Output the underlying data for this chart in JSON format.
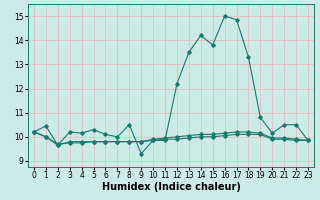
{
  "line1": {
    "x": [
      0,
      1,
      2,
      3,
      4,
      5,
      6,
      7,
      8,
      9,
      10,
      11,
      12,
      13,
      14,
      15,
      16,
      17,
      18,
      19,
      20,
      21,
      22,
      23
    ],
    "y": [
      10.2,
      10.45,
      9.65,
      10.2,
      10.15,
      10.3,
      10.1,
      10.0,
      10.5,
      9.3,
      9.85,
      9.85,
      12.2,
      13.5,
      14.2,
      13.8,
      15.0,
      14.85,
      13.3,
      10.8,
      10.15,
      10.5,
      10.5,
      9.85
    ]
  },
  "line2": {
    "x": [
      0,
      1,
      2,
      3,
      4,
      5,
      6,
      7,
      8,
      9,
      10,
      11,
      12,
      13,
      14,
      15,
      16,
      17,
      18,
      19,
      20,
      21,
      22,
      23
    ],
    "y": [
      10.2,
      10.0,
      9.65,
      9.8,
      9.8,
      9.8,
      9.8,
      9.8,
      9.8,
      9.8,
      9.85,
      9.9,
      9.9,
      9.95,
      10.0,
      10.0,
      10.05,
      10.1,
      10.1,
      10.1,
      9.9,
      9.9,
      9.85,
      9.85
    ]
  },
  "line3": {
    "x": [
      0,
      1,
      2,
      3,
      4,
      5,
      6,
      7,
      8,
      9,
      10,
      11,
      12,
      13,
      14,
      15,
      16,
      17,
      18,
      19,
      20,
      21,
      22,
      23
    ],
    "y": [
      10.2,
      10.0,
      9.7,
      9.75,
      9.75,
      9.8,
      9.8,
      9.8,
      9.8,
      9.8,
      9.9,
      9.95,
      10.0,
      10.05,
      10.1,
      10.1,
      10.15,
      10.2,
      10.2,
      10.15,
      9.95,
      9.95,
      9.9,
      9.85
    ]
  },
  "line_color": "#1a7a6e",
  "bg_color": "#cceae6",
  "grid_color": "#e8b8b8",
  "xlabel": "Humidex (Indice chaleur)",
  "ylim": [
    8.75,
    15.5
  ],
  "xlim": [
    -0.5,
    23.5
  ],
  "yticks": [
    9,
    10,
    11,
    12,
    13,
    14,
    15
  ],
  "xticks": [
    0,
    1,
    2,
    3,
    4,
    5,
    6,
    7,
    8,
    9,
    10,
    11,
    12,
    13,
    14,
    15,
    16,
    17,
    18,
    19,
    20,
    21,
    22,
    23
  ],
  "tick_fontsize": 5.5,
  "xlabel_fontsize": 7.0
}
